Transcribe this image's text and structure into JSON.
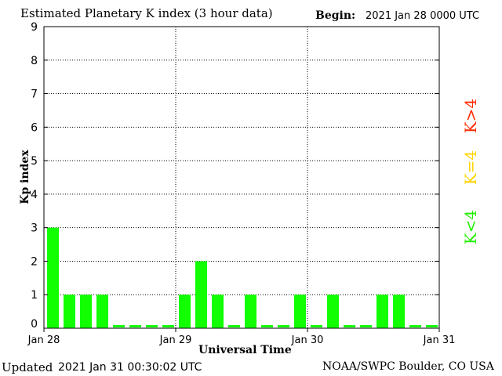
{
  "header": {
    "title": "Estimated Planetary K index (3 hour data)",
    "begin_label": "Begin:",
    "begin_value": "2021 Jan 28 0000 UTC"
  },
  "footer": {
    "updated_label": "Updated",
    "updated_value": "2021 Jan 31 00:30:02 UTC",
    "credit": "NOAA/SWPC Boulder, CO USA"
  },
  "legend": {
    "high": {
      "label": "K>4",
      "color": "#ff2a00"
    },
    "equal": {
      "label": "K=4",
      "color": "#ffd400"
    },
    "low": {
      "label": "K<4",
      "color": "#22ee00"
    }
  },
  "colors": {
    "bar": "#11ff00",
    "frame": "#000000",
    "grid": "#000000"
  },
  "chart_data": {
    "type": "bar",
    "title": "Estimated Planetary K index (3 hour data)",
    "xlabel": "Universal Time",
    "ylabel": "Kp index",
    "ylim": [
      0,
      9
    ],
    "yticks": [
      "0",
      "1",
      "2",
      "3",
      "4",
      "5",
      "6",
      "7",
      "8",
      "9"
    ],
    "xticks": [
      "Jan 28",
      "Jan 29",
      "Jan 30",
      "Jan 31"
    ],
    "grid": true,
    "bar_interval_hours": 3,
    "values": [
      3,
      1,
      1,
      1,
      0,
      0,
      0,
      0,
      1,
      2,
      1,
      0,
      1,
      0,
      0,
      1,
      0,
      1,
      0,
      0,
      1,
      1,
      0,
      0
    ]
  }
}
